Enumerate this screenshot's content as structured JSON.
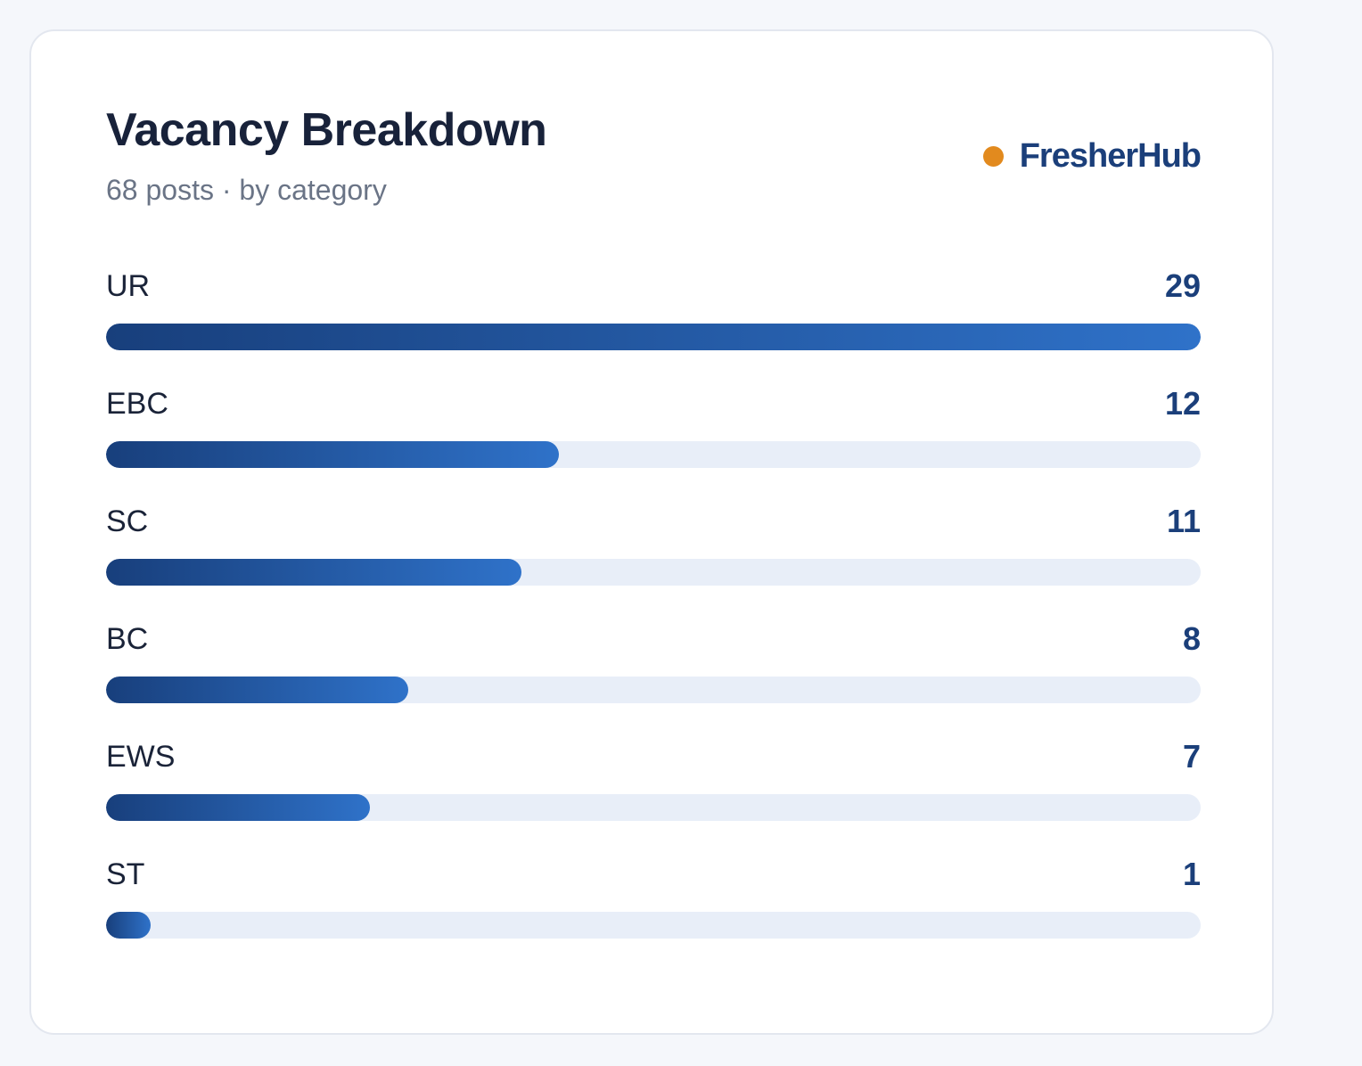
{
  "header": {
    "title": "Vacancy Breakdown",
    "subtitle": "68 posts · by category"
  },
  "brand": {
    "name": "FresherHub",
    "dot_color": "#e28a1e"
  },
  "colors": {
    "bar_start": "#183f7c",
    "bar_end": "#2f72c9",
    "track": "#e8eef8",
    "value_text": "#1b3f7a"
  },
  "chart_data": {
    "type": "bar",
    "orientation": "horizontal",
    "categories": [
      "UR",
      "EBC",
      "SC",
      "BC",
      "EWS",
      "ST"
    ],
    "values": [
      29,
      12,
      11,
      8,
      7,
      1
    ],
    "xlim": [
      0,
      29
    ],
    "grid": false
  }
}
